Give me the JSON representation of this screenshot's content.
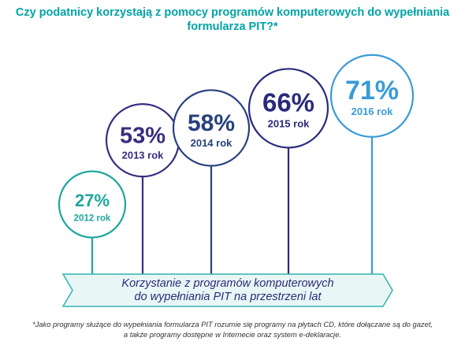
{
  "title": {
    "line1": "Czy podatnicy korzystają z pomocy programów komputerowych do wypełniania",
    "line2": "formularza PIT?*"
  },
  "chart_data": {
    "type": "bar",
    "categories": [
      "2012 rok",
      "2013 rok",
      "2014 rok",
      "2015 rok",
      "2016 rok"
    ],
    "values": [
      27,
      53,
      58,
      66,
      71
    ],
    "value_labels": [
      "27%",
      "53%",
      "58%",
      "66%",
      "71%"
    ],
    "unit": "%",
    "ylim": [
      0,
      100
    ],
    "grid": false,
    "legend": "none",
    "colors": [
      "#1fa79d",
      "#3a2d7f",
      "#27407f",
      "#2a2a7c",
      "#3b9bd6"
    ],
    "xlabel": "Korzystanie z programów komputerowych do wypełniania PIT na przestrzeni lat",
    "banner_lines": [
      "Korzystanie z programów komputerowych",
      "do wypełniania PIT na przestrzeni lat"
    ]
  },
  "footnote": {
    "line1": "*Jako programy służące do wypełniania formularza PIT rozumie się programy na płytach CD, które dołączane są do gazet,",
    "line2": "a także programy dostępne w Internecie oraz system e-deklaracje."
  },
  "colors": {
    "title": "#00a3a6",
    "banner_fill": "#e8f7f6",
    "banner_stroke": "#33b3ad",
    "banner_text": "#2d2a78"
  }
}
